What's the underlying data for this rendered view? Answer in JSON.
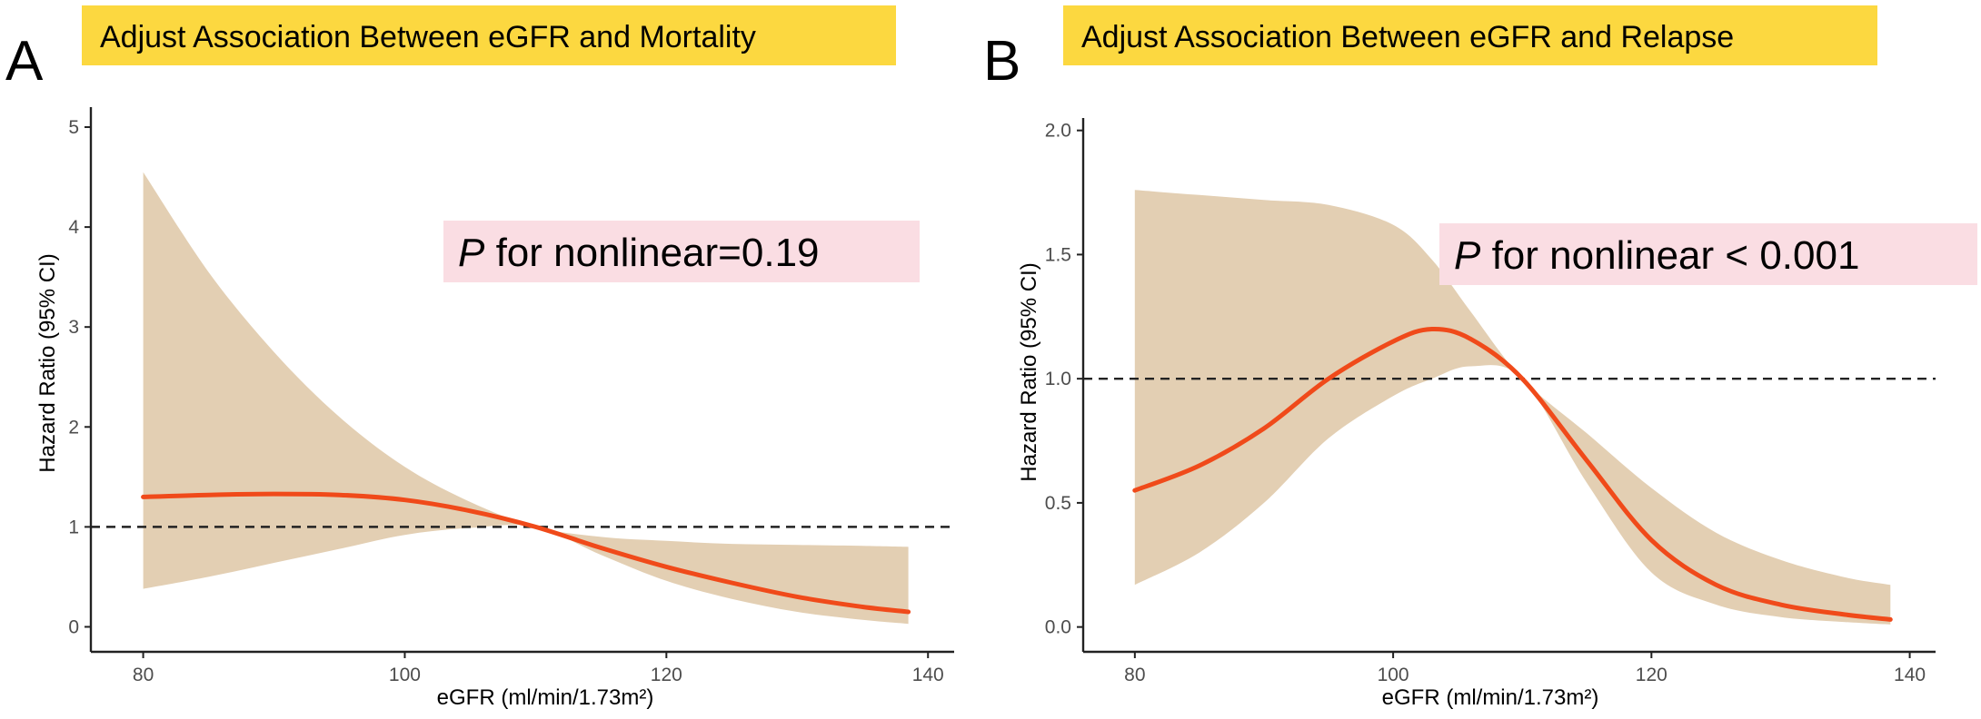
{
  "chart_data": [
    {
      "panel": "A",
      "type": "line",
      "title": "Adjust Association Between eGFR and Mortality",
      "xlabel": "eGFR (ml/min/1.73m²)",
      "ylabel": "Hazard Ratio (95% CI)",
      "xlim": [
        76,
        142
      ],
      "ylim": [
        -0.25,
        5.2
      ],
      "xticks": [
        80,
        100,
        120,
        140
      ],
      "yticks": [
        0,
        1,
        2,
        3,
        4,
        5
      ],
      "ytick_labels": [
        "0",
        "1",
        "2",
        "3",
        "4",
        "5"
      ],
      "reference_line": 1,
      "annotation": {
        "italic": "P",
        "text": " for nonlinear=0.19"
      },
      "series": [
        {
          "name": "Hazard Ratio",
          "x": [
            80,
            85,
            90,
            95,
            100,
            105,
            110,
            115,
            120,
            125,
            130,
            135,
            138.5
          ],
          "y": [
            1.3,
            1.32,
            1.33,
            1.32,
            1.27,
            1.16,
            1.0,
            0.79,
            0.6,
            0.44,
            0.3,
            0.2,
            0.15
          ]
        },
        {
          "name": "95% CI upper",
          "x": [
            80,
            85,
            90,
            95,
            100,
            105,
            110,
            115,
            120,
            125,
            130,
            135,
            138.5
          ],
          "y": [
            4.55,
            3.55,
            2.75,
            2.1,
            1.6,
            1.25,
            1.0,
            0.9,
            0.86,
            0.83,
            0.82,
            0.81,
            0.8
          ]
        },
        {
          "name": "95% CI lower",
          "x": [
            80,
            85,
            90,
            95,
            100,
            105,
            110,
            115,
            120,
            125,
            130,
            135,
            138.5
          ],
          "y": [
            0.38,
            0.5,
            0.64,
            0.78,
            0.92,
            0.99,
            1.0,
            0.72,
            0.46,
            0.28,
            0.15,
            0.07,
            0.03
          ]
        }
      ]
    },
    {
      "panel": "B",
      "type": "line",
      "title": "Adjust Association Between eGFR and Relapse",
      "xlabel": "eGFR (ml/min/1.73m²)",
      "ylabel": "Hazard Ratio (95% CI)",
      "xlim": [
        76,
        142
      ],
      "ylim": [
        -0.1,
        2.05
      ],
      "xticks": [
        80,
        100,
        120,
        140
      ],
      "yticks": [
        0,
        0.5,
        1,
        1.5,
        2
      ],
      "ytick_labels": [
        "0.0",
        "0.5",
        "1.0",
        "1.5",
        "2.0"
      ],
      "reference_line": 1,
      "annotation": {
        "italic": "P",
        "text": " for nonlinear < 0.001"
      },
      "series": [
        {
          "name": "Hazard Ratio",
          "x": [
            80,
            85,
            90,
            95,
            100,
            103,
            106,
            110,
            115,
            120,
            125,
            130,
            135,
            138.5
          ],
          "y": [
            0.55,
            0.65,
            0.8,
            1.0,
            1.15,
            1.2,
            1.16,
            1.0,
            0.67,
            0.35,
            0.17,
            0.09,
            0.05,
            0.03
          ]
        },
        {
          "name": "95% CI upper",
          "x": [
            80,
            85,
            90,
            95,
            100,
            103,
            106,
            110,
            115,
            120,
            125,
            130,
            135,
            138.5
          ],
          "y": [
            1.76,
            1.74,
            1.72,
            1.7,
            1.62,
            1.48,
            1.27,
            1.0,
            0.78,
            0.56,
            0.38,
            0.27,
            0.2,
            0.17
          ]
        },
        {
          "name": "95% CI lower",
          "x": [
            80,
            85,
            90,
            95,
            100,
            103,
            106,
            110,
            115,
            120,
            125,
            130,
            135,
            138.5
          ],
          "y": [
            0.17,
            0.3,
            0.5,
            0.76,
            0.93,
            1.0,
            1.05,
            1.0,
            0.58,
            0.22,
            0.09,
            0.04,
            0.02,
            0.01
          ]
        }
      ]
    }
  ],
  "colors": {
    "title_bg": "#fcd840",
    "annot_bg": "#fadde3",
    "ci_fill": "#e3cfb3",
    "line": "#f04a1a",
    "ref_line": "#222222",
    "axis": "#222222"
  }
}
